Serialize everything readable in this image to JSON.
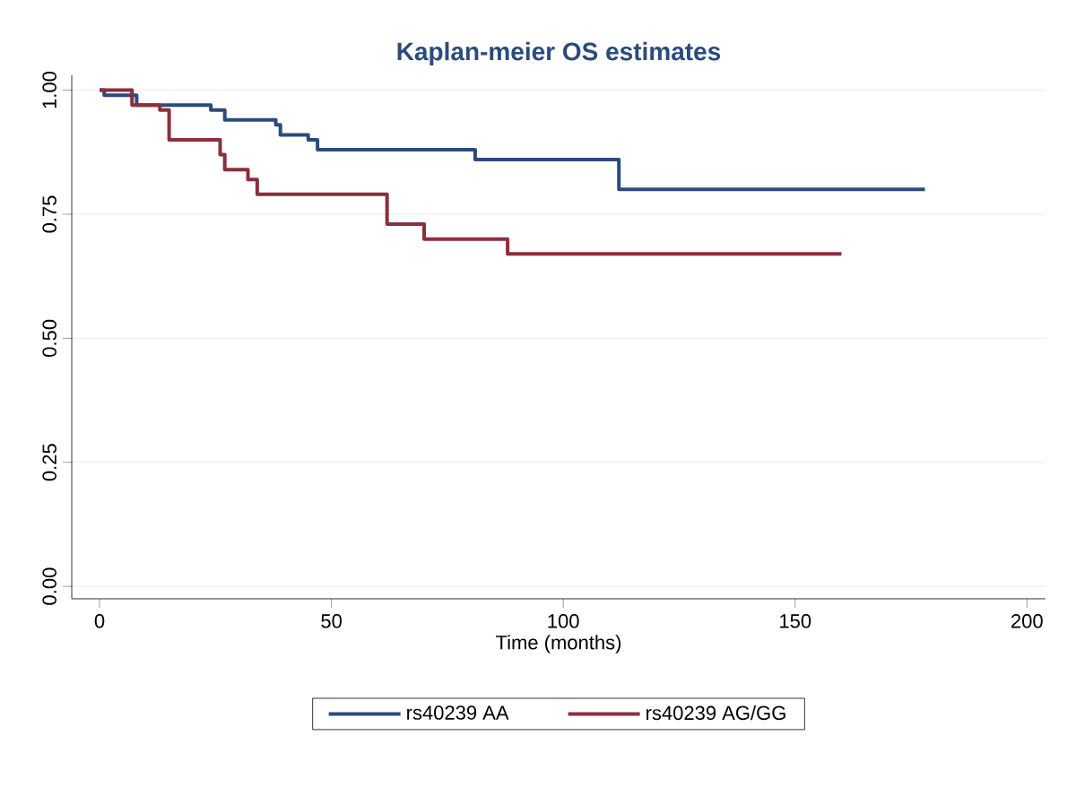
{
  "chart_data": {
    "type": "step",
    "title": "Kaplan-meier OS estimates",
    "xlabel": "Time (months)",
    "xlim": [
      -6,
      204
    ],
    "xticks": [
      0,
      50,
      100,
      150,
      200
    ],
    "ylim": [
      -0.025,
      1.03
    ],
    "yticks": [
      {
        "value": 0,
        "label": "0.00"
      },
      {
        "value": 0.25,
        "label": "0.25"
      },
      {
        "value": 0.5,
        "label": "0.50"
      },
      {
        "value": 0.75,
        "label": "0.75"
      },
      {
        "value": 1,
        "label": "1.00"
      }
    ],
    "grid": "y",
    "legend": "bottom",
    "marker": "none",
    "line_style": "solid",
    "series": [
      {
        "name": "rs40239 AA",
        "color": "#2b4b7c",
        "x": [
          0,
          1,
          8,
          24,
          27,
          38,
          39,
          45,
          47,
          81,
          112,
          178
        ],
        "values": [
          1,
          0.99,
          0.97,
          0.96,
          0.94,
          0.93,
          0.91,
          0.9,
          0.88,
          0.86,
          0.8,
          0.8
        ]
      },
      {
        "name": "rs40239 AG/GG",
        "color": "#8b2f3c",
        "x": [
          0,
          7,
          13,
          15,
          26,
          27,
          32,
          34,
          62,
          70,
          88,
          160
        ],
        "values": [
          1,
          0.97,
          0.96,
          0.9,
          0.87,
          0.84,
          0.82,
          0.79,
          0.73,
          0.7,
          0.67,
          0.67
        ]
      }
    ]
  }
}
